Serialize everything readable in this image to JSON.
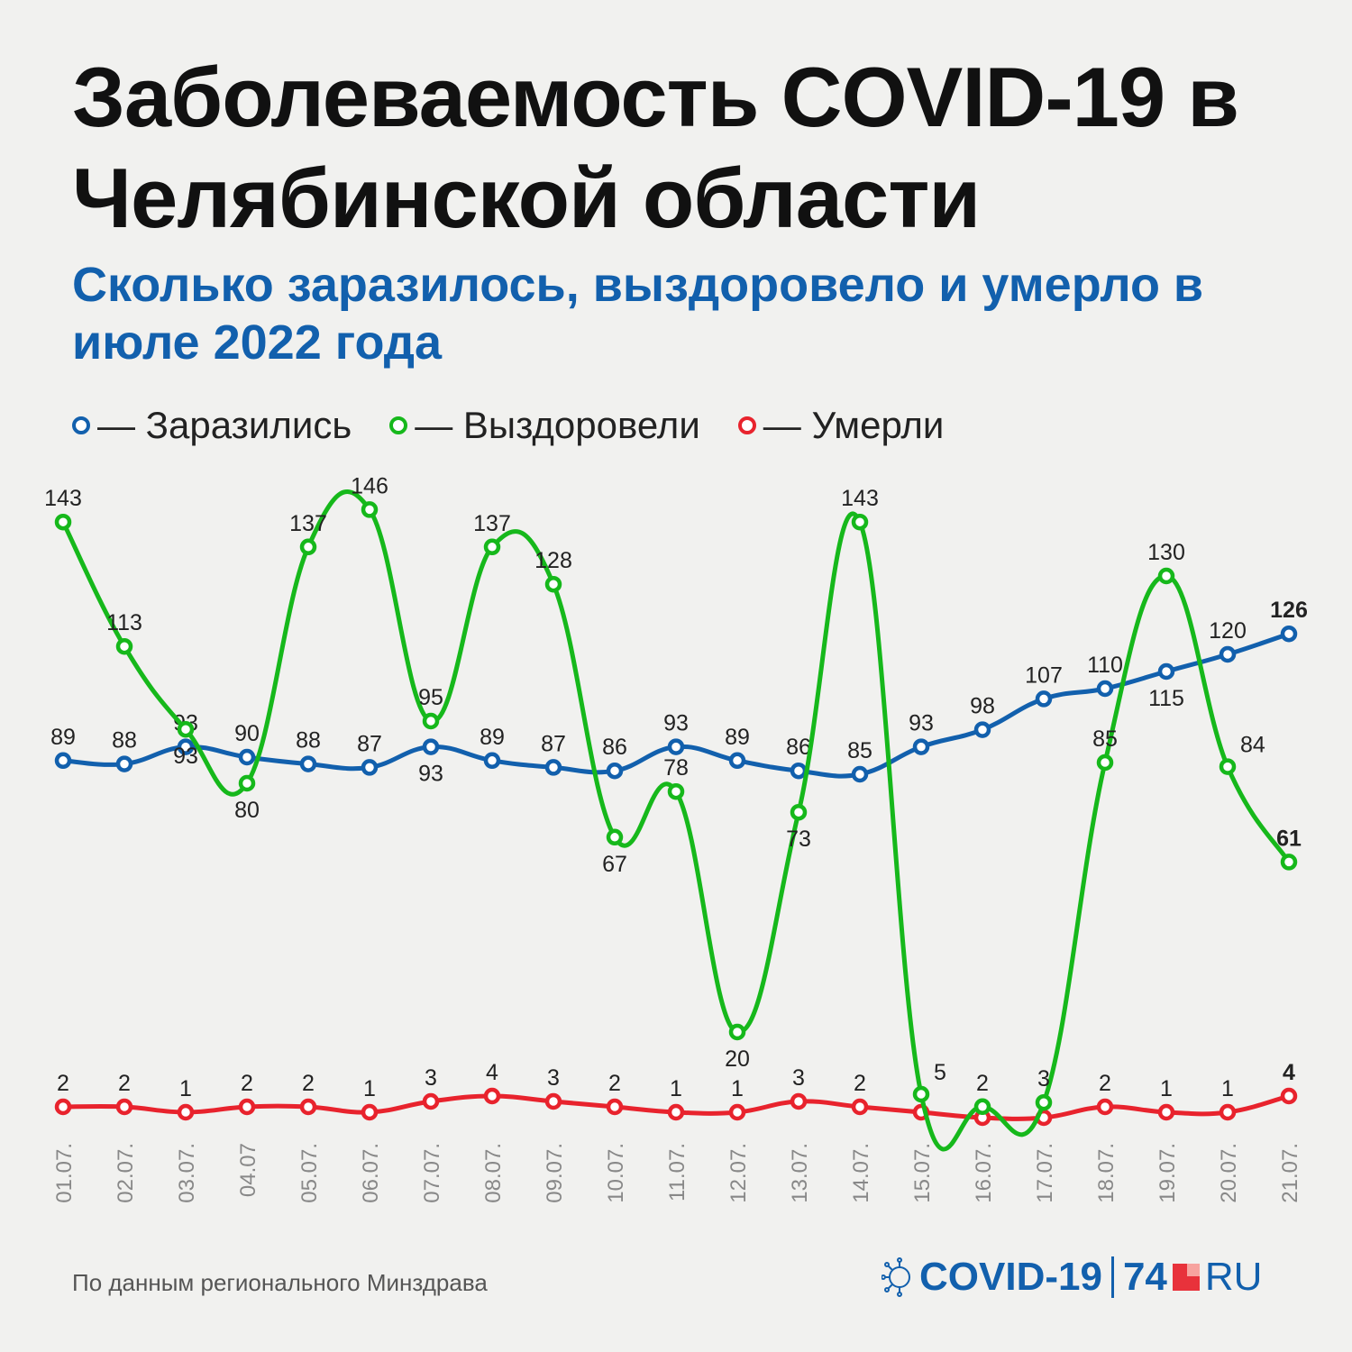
{
  "title": "Заболеваемость COVID-19 в Челябинской области",
  "subtitle": "Сколько заразилось, выздоровело и умерло в июле 2022 года",
  "legend": [
    {
      "label": "— Заразились",
      "color": "#1260ad"
    },
    {
      "label": "— Выздоровели",
      "color": "#16b81b"
    },
    {
      "label": "— Умерли",
      "color": "#e8232d"
    }
  ],
  "source": "По данным регионального Минздрава",
  "logo": {
    "covid": "COVID-19",
    "num": "74",
    "ru": "RU"
  },
  "chart_data": {
    "type": "line",
    "categories": [
      "01.07.",
      "02.07.",
      "03.07.",
      "04.07",
      "05.07.",
      "06.07.",
      "07.07.",
      "08.07.",
      "09.07.",
      "10.07.",
      "11.07.",
      "12.07.",
      "13.07.",
      "14.07.",
      "15.07.",
      "16.07.",
      "17.07.",
      "18.07.",
      "19.07.",
      "20.07.",
      "21.07."
    ],
    "series": [
      {
        "name": "Заразились",
        "color": "#1260ad",
        "values": [
          89,
          88,
          93,
          90,
          88,
          87,
          93,
          89,
          87,
          86,
          93,
          89,
          86,
          85,
          93,
          98,
          107,
          110,
          115,
          120,
          126
        ]
      },
      {
        "name": "Выздоровели",
        "color": "#16b81b",
        "values": [
          143,
          113,
          93,
          80,
          137,
          146,
          95,
          137,
          128,
          67,
          78,
          20,
          73,
          143,
          5,
          2,
          3,
          85,
          130,
          84,
          61
        ]
      },
      {
        "name": "Умерли",
        "color": "#e8232d",
        "values": [
          2,
          2,
          1,
          2,
          2,
          1,
          3,
          4,
          3,
          2,
          1,
          1,
          3,
          2,
          1,
          0,
          0,
          2,
          1,
          1,
          4
        ]
      }
    ],
    "value_labels": {
      "Заразились": [
        "89",
        "88",
        "93",
        "90",
        "88",
        "87",
        "93",
        "89",
        "87",
        "86",
        "93",
        "89",
        "86",
        "85",
        "93",
        "98",
        "107",
        "110",
        "115",
        "120",
        "126"
      ],
      "Выздоровели": [
        "143",
        "113",
        "93",
        "80",
        "137",
        "146",
        "95",
        "137",
        "128",
        "67",
        "78",
        "20",
        "73",
        "143",
        "5",
        "2",
        "3",
        "85",
        "130",
        "84",
        "61"
      ],
      "Умерли": [
        "2",
        "2",
        "1",
        "2",
        "2",
        "1",
        "3",
        "4",
        "3",
        "2",
        "1",
        "1",
        "3",
        "2",
        "",
        "",
        "",
        "2",
        "1",
        "1",
        "4"
      ]
    },
    "grid": false
  }
}
